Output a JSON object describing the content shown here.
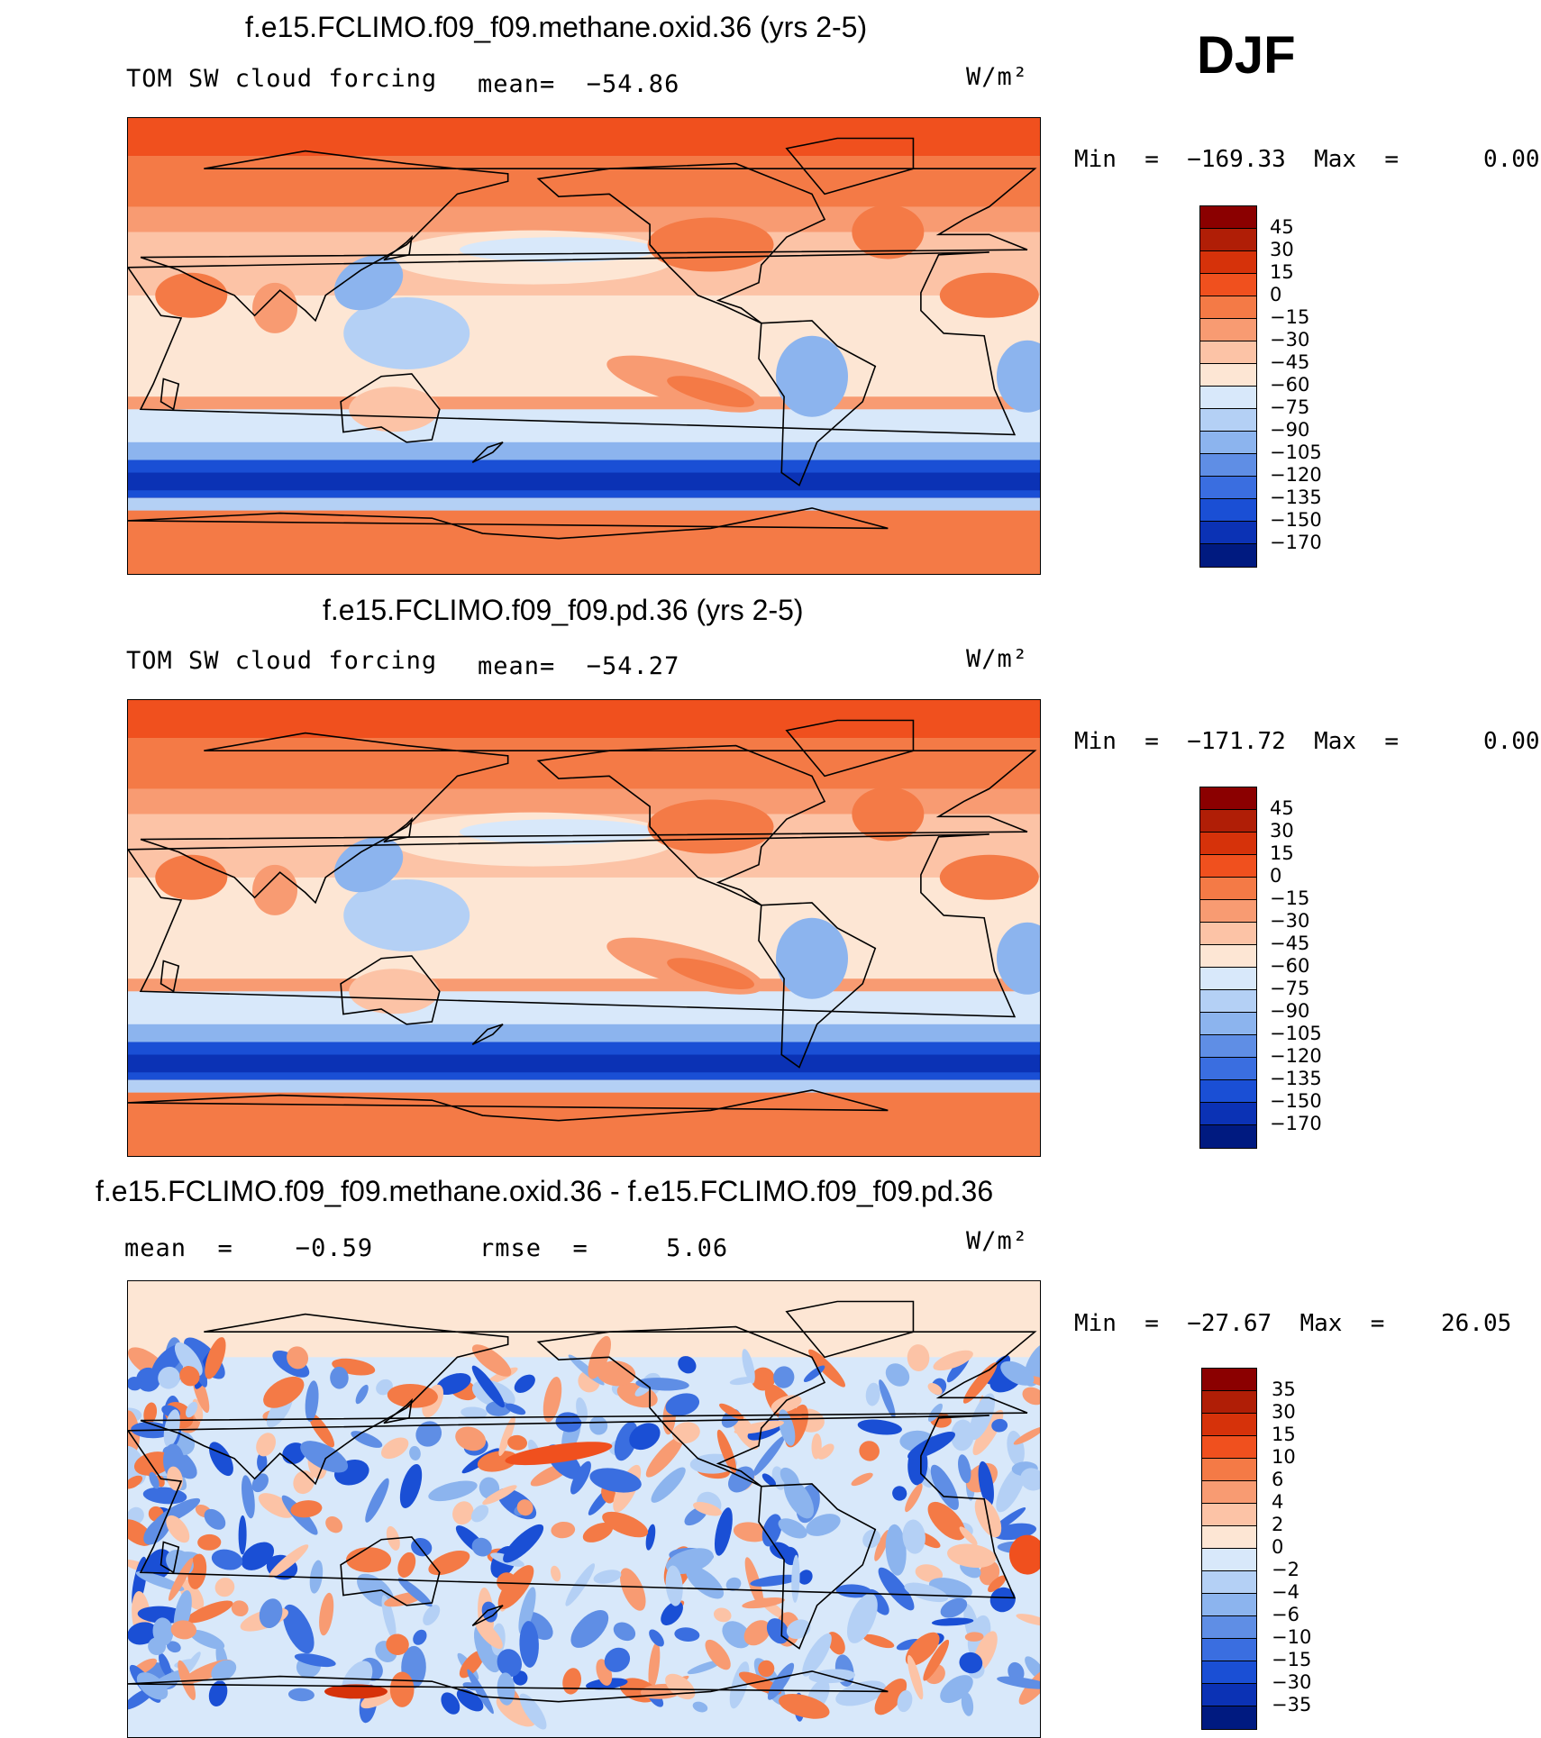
{
  "season": "DJF",
  "panels": [
    {
      "title": "f.e15.FCLIMO.f09_f09.methane.oxid.36 (yrs 2-5)",
      "left_label": "TOM SW cloud forcing",
      "mid_label": "mean=  −54.86",
      "units": "W/m²",
      "minmax": "Min  =  −169.33  Max  =      0.00",
      "colorbar_ticks": [
        "45",
        "30",
        "15",
        "0",
        "−15",
        "−30",
        "−45",
        "−60",
        "−75",
        "−90",
        "−105",
        "−120",
        "−135",
        "−150",
        "−170"
      ],
      "colors": [
        "#8b0000",
        "#b01e06",
        "#d6320a",
        "#f0501e",
        "#f47a46",
        "#f89b72",
        "#fcc3a6",
        "#fde6d4",
        "#d8e8fa",
        "#b4d0f5",
        "#8cb4ee",
        "#5f8ee5",
        "#3a6ee0",
        "#1a4fd5",
        "#0b32b5",
        "#001a80"
      ],
      "mean_value": -54.86
    },
    {
      "title": "f.e15.FCLIMO.f09_f09.pd.36 (yrs 2-5)",
      "left_label": "TOM SW cloud forcing",
      "mid_label": "mean=  −54.27",
      "units": "W/m²",
      "minmax": "Min  =  −171.72  Max  =      0.00",
      "colorbar_ticks": [
        "45",
        "30",
        "15",
        "0",
        "−15",
        "−30",
        "−45",
        "−60",
        "−75",
        "−90",
        "−105",
        "−120",
        "−135",
        "−150",
        "−170"
      ],
      "colors": [
        "#8b0000",
        "#b01e06",
        "#d6320a",
        "#f0501e",
        "#f47a46",
        "#f89b72",
        "#fcc3a6",
        "#fde6d4",
        "#d8e8fa",
        "#b4d0f5",
        "#8cb4ee",
        "#5f8ee5",
        "#3a6ee0",
        "#1a4fd5",
        "#0b32b5",
        "#001a80"
      ],
      "mean_value": -54.27
    },
    {
      "title": "f.e15.FCLIMO.f09_f09.methane.oxid.36 - f.e15.FCLIMO.f09_f09.pd.36",
      "left_label": "mean  =    −0.59",
      "mid_label": "rmse  =     5.06",
      "units": "W/m²",
      "minmax": "Min  =  −27.67  Max  =    26.05",
      "colorbar_ticks": [
        "35",
        "30",
        "15",
        "10",
        "6",
        "4",
        "2",
        "0",
        "−2",
        "−4",
        "−6",
        "−10",
        "−15",
        "−30",
        "−35"
      ],
      "colors": [
        "#8b0000",
        "#b01e06",
        "#d6320a",
        "#f0501e",
        "#f47a46",
        "#f89b72",
        "#fcc3a6",
        "#fde6d4",
        "#d8e8fa",
        "#b4d0f5",
        "#8cb4ee",
        "#5f8ee5",
        "#3a6ee0",
        "#1a4fd5",
        "#0b32b5",
        "#001a80"
      ],
      "mean_value": -0.59,
      "rmse_value": 5.06
    }
  ]
}
